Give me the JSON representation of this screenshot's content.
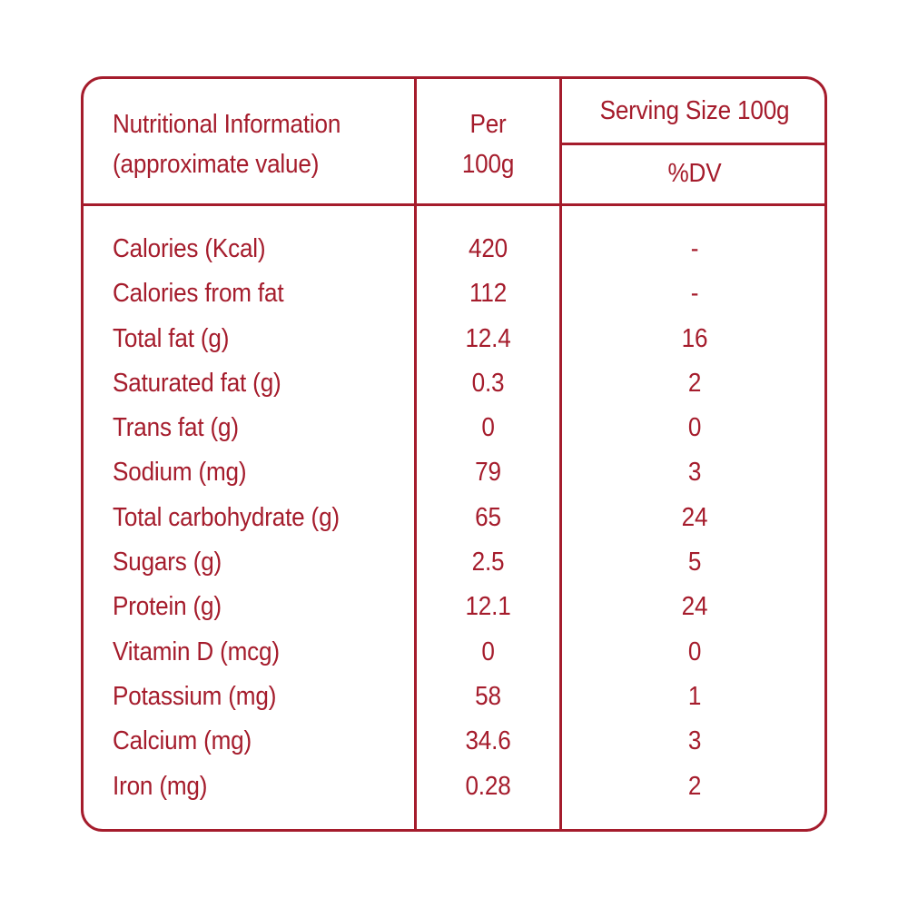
{
  "header": {
    "title_line1": "Nutritional Information",
    "title_line2": "(approximate value)",
    "per_line1": "Per",
    "per_line2": "100g",
    "serving_label": "Serving Size 100g",
    "dv_label": "%DV"
  },
  "rows": [
    {
      "name": "Calories (Kcal)",
      "per100g": "420",
      "dv": "-"
    },
    {
      "name": "Calories from fat",
      "per100g": "112",
      "dv": "-"
    },
    {
      "name": "Total fat (g)",
      "per100g": "12.4",
      "dv": "16"
    },
    {
      "name": "Saturated fat (g)",
      "per100g": "0.3",
      "dv": "2"
    },
    {
      "name": "Trans fat (g)",
      "per100g": "0",
      "dv": "0"
    },
    {
      "name": "Sodium (mg)",
      "per100g": "79",
      "dv": "3"
    },
    {
      "name": "Total carbohydrate (g)",
      "per100g": "65",
      "dv": "24"
    },
    {
      "name": "Sugars (g)",
      "per100g": "2.5",
      "dv": "5"
    },
    {
      "name": "Protein (g)",
      "per100g": "12.1",
      "dv": "24"
    },
    {
      "name": "Vitamin D (mcg)",
      "per100g": "0",
      "dv": "0"
    },
    {
      "name": "Potassium (mg)",
      "per100g": "58",
      "dv": "1"
    },
    {
      "name": "Calcium (mg)",
      "per100g": "34.6",
      "dv": "3"
    },
    {
      "name": "Iron (mg)",
      "per100g": "0.28",
      "dv": "2"
    }
  ],
  "colors": {
    "accent": "#a51c2c",
    "background": "#ffffff"
  }
}
